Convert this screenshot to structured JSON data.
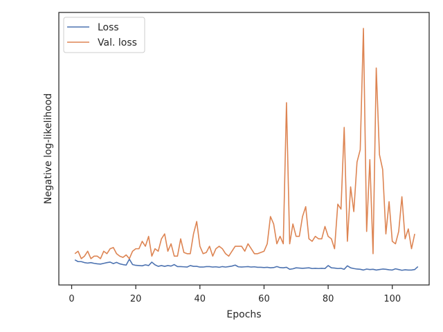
{
  "chart_data": {
    "type": "line",
    "title": "",
    "xlabel": "Epochs",
    "ylabel": "Negative log-likelihood",
    "xlim": [
      -4,
      111.5
    ],
    "ylim": [
      0,
      100
    ],
    "x_ticks": [
      0,
      20,
      40,
      60,
      80,
      100
    ],
    "x_tick_labels": [
      "0",
      "20",
      "40",
      "60",
      "80",
      "100"
    ],
    "grid": false,
    "legend_position": "top-left",
    "series": [
      {
        "name": "Loss",
        "color": "#4c72b0",
        "values": [
          6.5,
          5.8,
          5.8,
          5.4,
          5.2,
          5.4,
          5.1,
          4.9,
          4.8,
          5.1,
          5.4,
          5.6,
          5.0,
          5.5,
          4.9,
          4.6,
          4.4,
          6.8,
          4.6,
          4.3,
          4.2,
          4.1,
          4.5,
          4.2,
          5.6,
          4.5,
          3.9,
          4.2,
          3.9,
          4.2,
          4.0,
          4.6,
          3.8,
          3.8,
          3.7,
          3.6,
          4.2,
          3.9,
          3.9,
          3.6,
          3.6,
          3.8,
          3.8,
          3.6,
          3.7,
          3.5,
          3.8,
          3.6,
          3.8,
          4.0,
          4.4,
          3.7,
          3.6,
          3.7,
          3.8,
          3.6,
          3.7,
          3.5,
          3.5,
          3.4,
          3.5,
          3.3,
          3.4,
          3.8,
          3.4,
          3.3,
          3.5,
          2.7,
          2.9,
          3.3,
          3.2,
          3.1,
          3.2,
          3.3,
          3.0,
          3.1,
          3.0,
          3.1,
          3.0,
          4.2,
          3.3,
          3.2,
          3.0,
          3.1,
          2.7,
          4.1,
          3.3,
          3.0,
          2.8,
          2.7,
          2.4,
          2.8,
          2.6,
          2.7,
          2.4,
          2.6,
          2.8,
          2.7,
          2.5,
          2.4,
          2.9,
          2.6,
          2.3,
          2.5,
          2.4,
          2.4,
          2.6,
          3.8
        ]
      },
      {
        "name": "Val. loss",
        "color": "#dd8452",
        "values": [
          9,
          10,
          7,
          8,
          10,
          7,
          8,
          8,
          7,
          10,
          9,
          11,
          11.5,
          9,
          8,
          7.5,
          8.5,
          7,
          10,
          11,
          11,
          14,
          12,
          16,
          8,
          11,
          10,
          15,
          17,
          10,
          13,
          8,
          8,
          15,
          9.5,
          9,
          9,
          17,
          22,
          12,
          9,
          9.5,
          12,
          8,
          11,
          12,
          11,
          9,
          8,
          10,
          12,
          12,
          12,
          10,
          13,
          11,
          9,
          9,
          9.5,
          10,
          13,
          24,
          21,
          13,
          16,
          13,
          70,
          13,
          21,
          16,
          16,
          24,
          28,
          15,
          14,
          16,
          15,
          15,
          20,
          16,
          15,
          11,
          29,
          27,
          60,
          14,
          36,
          26,
          46,
          51,
          100,
          18,
          47,
          9,
          84,
          49,
          43,
          17,
          30,
          14,
          13,
          18,
          32,
          15,
          19,
          11,
          17
        ]
      }
    ]
  }
}
